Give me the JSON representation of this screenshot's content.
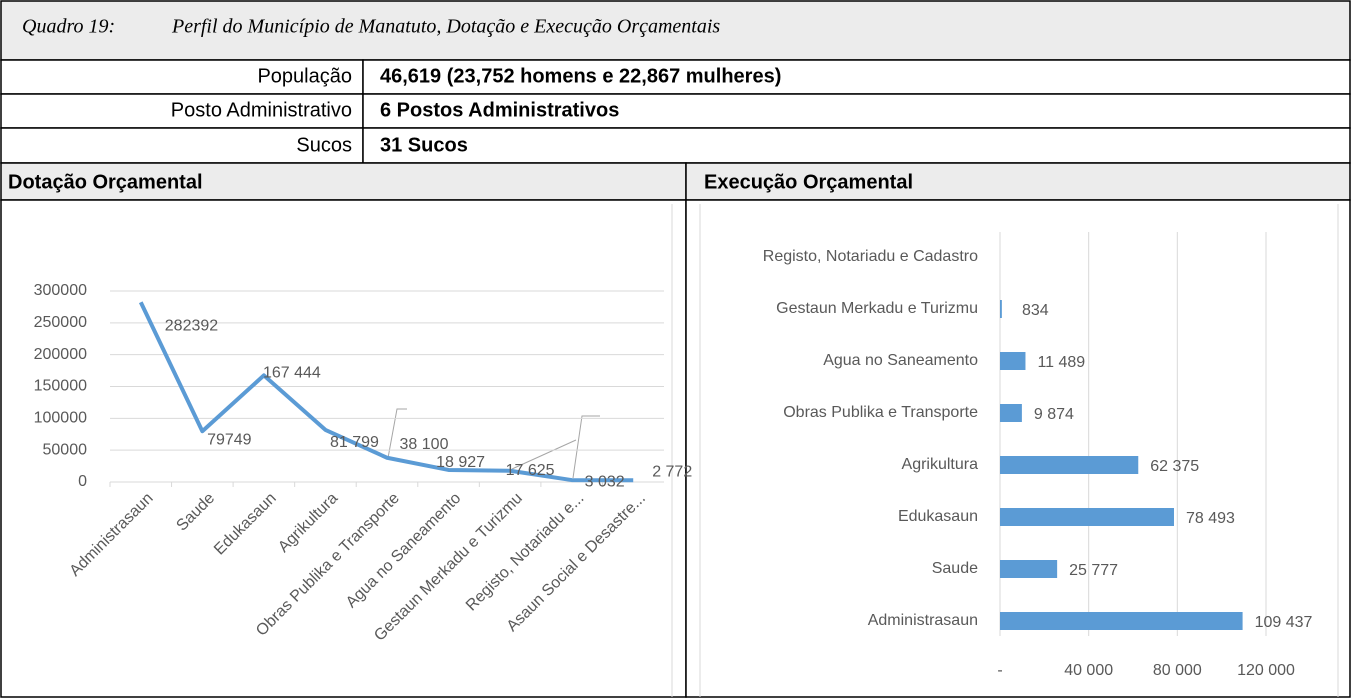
{
  "header": {
    "label": "Quadro 19:",
    "title": "Perfil do Município de Manatuto, Dotação e Execução Orçamentais"
  },
  "table": {
    "rows": [
      [
        "População",
        "46,619 (23,752 homens e 22,867 mulheres)"
      ],
      [
        "Posto Administrativo",
        "6 Postos Administrativos"
      ],
      [
        "Sucos",
        "31 Sucos"
      ]
    ]
  },
  "sections": [
    "Dotação Orçamental",
    "Execução Orçamental"
  ],
  "chart_data": [
    {
      "type": "line",
      "color": "#5b9bd5",
      "grid": true,
      "categories": [
        "Administrasaun",
        "Saude",
        "Edukasaun",
        "Agrikultura",
        "Obras Publika e Transporte",
        "Agua no Saneamento",
        "Gestaun Merkadu e Turizmu",
        "Registo, Notariadu e...",
        "Asaun Social e  Desastre..."
      ],
      "values": [
        282392,
        79749,
        167444,
        81799,
        38100,
        18927,
        17625,
        3032,
        2772
      ],
      "value_labels": [
        "282392",
        "79749",
        "167 444",
        "81 799",
        "38 100",
        "18 927",
        "17 625",
        "3 032",
        "2 772"
      ],
      "ylim": [
        0,
        300000
      ],
      "yticks": [
        0,
        50000,
        100000,
        150000,
        200000,
        250000,
        300000
      ]
    },
    {
      "type": "bar",
      "orientation": "horizontal",
      "color": "#5b9bd5",
      "grid": true,
      "categories": [
        "Registo, Notariadu e Cadastro",
        "Gestaun Merkadu e Turizmu",
        "Agua no Saneamento",
        "Obras Publika e Transporte",
        "Agrikultura",
        "Edukasaun",
        "Saude",
        "Administrasaun"
      ],
      "values": [
        null,
        834,
        11489,
        9874,
        62375,
        78493,
        25777,
        109437
      ],
      "value_labels": [
        null,
        "834",
        "11 489",
        "9 874",
        "62 375",
        "78 493",
        "25 777",
        "109 437"
      ],
      "xlim": [
        0,
        120000
      ],
      "xticks": [
        {
          "value": 0,
          "label": "-"
        },
        {
          "value": 40000,
          "label": "40 000"
        },
        {
          "value": 80000,
          "label": "80 000"
        },
        {
          "value": 120000,
          "label": "120 000"
        }
      ]
    }
  ]
}
